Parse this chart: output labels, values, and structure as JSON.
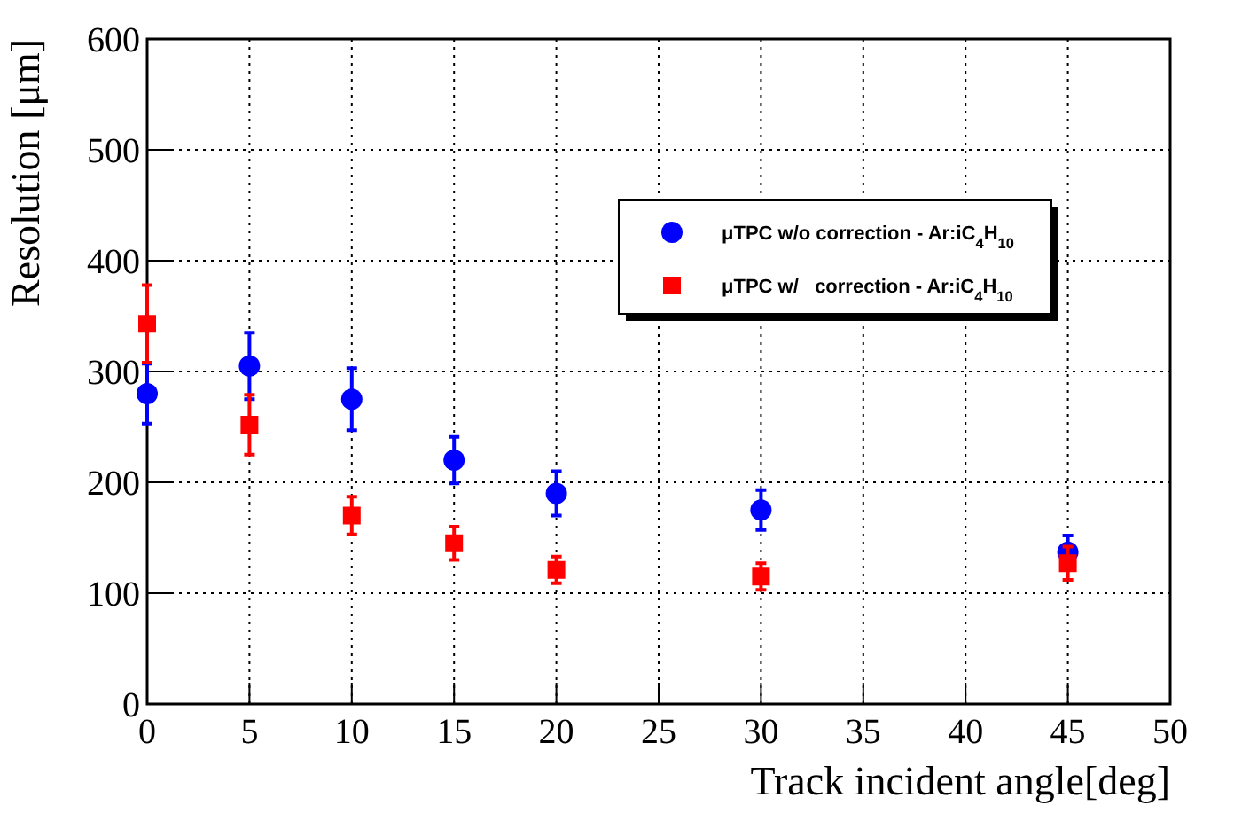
{
  "chart_data": {
    "type": "scatter",
    "xlabel": "Track incident angle[deg]",
    "ylabel": "Resolution [μm]",
    "x": [
      0,
      5,
      10,
      15,
      20,
      30,
      45
    ],
    "series": [
      {
        "name": "μTPC w/o correction - Ar:iC$_{4}$H$_{10}$",
        "color": "#0000ff",
        "marker": "circle",
        "values": [
          280,
          305,
          275,
          220,
          190,
          175,
          137
        ],
        "errors": [
          27,
          30,
          28,
          21,
          20,
          18,
          15
        ]
      },
      {
        "name": "μTPC w/   correction - Ar:iC$_{4}$H$_{10}$",
        "color": "#ff0000",
        "marker": "square",
        "values": [
          343,
          252,
          170,
          145,
          121,
          115,
          127
        ],
        "errors": [
          35,
          27,
          17,
          15,
          12,
          12,
          15
        ]
      }
    ],
    "xlim": [
      0,
      50
    ],
    "xticks": [
      0,
      5,
      10,
      15,
      20,
      25,
      30,
      35,
      40,
      45,
      50
    ],
    "ylim": [
      0,
      600
    ],
    "yticks": [
      0,
      100,
      200,
      300,
      400,
      500,
      600
    ],
    "grid": true,
    "legend": "top right"
  }
}
